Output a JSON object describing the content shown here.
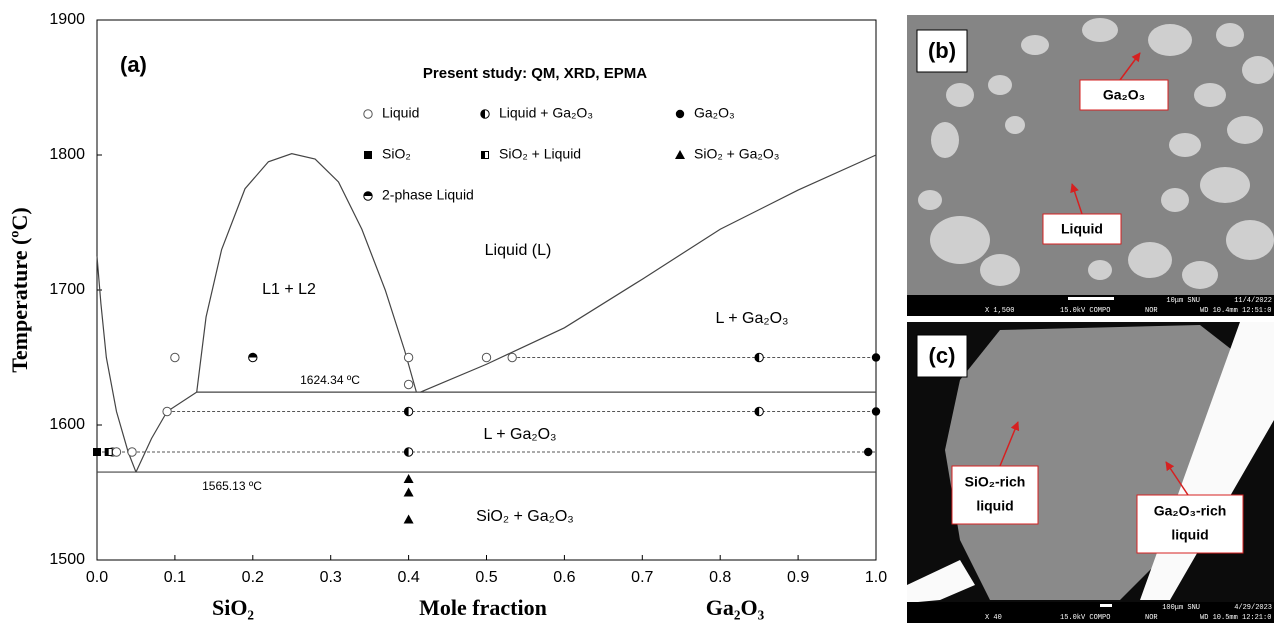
{
  "chart_data": {
    "type": "phase-diagram",
    "panel_label": "(a)",
    "legend_title": "Present study: QM, XRD, EPMA",
    "ylabel": "Temperature (ºC)",
    "xlabel": "Mole fraction",
    "x_end_labels": [
      "SiO₂",
      "Ga₂O₃"
    ],
    "xlim": [
      0,
      1
    ],
    "ylim": [
      1500,
      1900
    ],
    "xticks": [
      {
        "value": 0,
        "label": "0.0"
      },
      0.1,
      0.2,
      0.3,
      0.4,
      0.5,
      0.6,
      0.7,
      0.8,
      0.9,
      {
        "value": 1,
        "label": "1.0"
      }
    ],
    "yticks": [
      1500,
      1600,
      1700,
      1800,
      1900
    ],
    "series": [
      {
        "name": "Liquid",
        "marker": "circle-open",
        "color": "#555555",
        "x": [
          0.02,
          0.025,
          0.045,
          0.09,
          0.1,
          0.4,
          0.5,
          0.533,
          0.4
        ],
        "values": [
          1580,
          1580,
          1580,
          1610,
          1650,
          1650,
          1650,
          1650,
          1630
        ]
      },
      {
        "name": "Liquid + Ga₂O₃",
        "marker": "circle-half-left",
        "color": "#000000",
        "x": [
          0.85,
          0.4,
          0.85,
          0.4
        ],
        "values": [
          1650,
          1610,
          1610,
          1580
        ]
      },
      {
        "name": "Ga₂O₃",
        "marker": "circle-filled",
        "color": "#000000",
        "x": [
          1,
          1,
          0.99
        ],
        "values": [
          1650,
          1610,
          1580
        ]
      },
      {
        "name": "SiO₂",
        "marker": "square",
        "color": "#000000",
        "x": [
          0
        ],
        "values": [
          1580
        ]
      },
      {
        "name": "SiO₂ + Liquid",
        "marker": "square-half",
        "color": "#000000",
        "x": [
          0.015
        ],
        "values": [
          1580
        ]
      },
      {
        "name": "SiO₂ + Ga₂O₃",
        "marker": "triangle",
        "color": "#000000",
        "x": [
          0.4,
          0.4,
          0.4
        ],
        "values": [
          1560,
          1550,
          1530
        ]
      },
      {
        "name": "2-phase Liquid",
        "marker": "circle-half-top",
        "color": "#000000",
        "x": [
          0.2
        ],
        "values": [
          1650
        ]
      }
    ],
    "curves": [
      {
        "dash": false,
        "x": [
          0.128,
          0.14,
          0.16,
          0.19,
          0.22,
          0.25,
          0.28,
          0.31,
          0.34,
          0.37,
          0.395,
          0.41
        ],
        "values": [
          1624.34,
          1680,
          1730,
          1775,
          1795,
          1801,
          1797,
          1780,
          1745,
          1700,
          1655,
          1624.34
        ]
      },
      {
        "dash": false,
        "x": [
          0,
          0.005,
          0.012,
          0.025,
          0.04,
          0.05
        ],
        "values": [
          1725,
          1690,
          1650,
          1610,
          1580,
          1565.13
        ]
      },
      {
        "dash": false,
        "x": [
          0.05,
          0.07,
          0.09,
          0.128
        ],
        "values": [
          1565.13,
          1590,
          1610,
          1624.34
        ]
      },
      {
        "dash": false,
        "x": [
          0.128,
          1
        ],
        "values": [
          1624.34,
          1624.34
        ]
      },
      {
        "dash": false,
        "x": [
          0.415,
          0.5,
          0.6,
          0.7,
          0.8,
          0.9,
          1
        ],
        "values": [
          1624.34,
          1645,
          1672,
          1708,
          1745,
          1774,
          1800
        ]
      },
      {
        "dash": false,
        "x": [
          0,
          1
        ],
        "values": [
          1565.13,
          1565.13
        ]
      },
      {
        "dash": true,
        "x": [
          0.533,
          1
        ],
        "values": [
          1650,
          1650
        ]
      },
      {
        "dash": true,
        "x": [
          0.09,
          1
        ],
        "values": [
          1610,
          1610
        ]
      },
      {
        "dash": true,
        "x": [
          0,
          1
        ],
        "values": [
          1580,
          1580
        ]
      }
    ],
    "annotations": [
      "L1 + L2",
      "Liquid (L)",
      "L + Ga₂O₃",
      "L + Ga₂O₃",
      "SiO₂ + Ga₂O₃",
      "1624.34 ºC",
      "1565.13 ºC"
    ]
  },
  "panels": [
    {
      "label": "(b)",
      "callouts": [
        [
          "Ga₂O₃"
        ],
        [
          "Liquid"
        ]
      ],
      "info": [
        "10μm SNU",
        "11/4/2022",
        "X 1,500",
        "15.0kV COMPO",
        "NOR",
        "WD 10.4mm 12:51:0"
      ]
    },
    {
      "label": "(c)",
      "callouts": [
        [
          "SiO₂-rich",
          "liquid"
        ],
        [
          "Ga₂O₃-rich",
          "liquid"
        ]
      ],
      "info": [
        "100μm SNU",
        "4/29/2023",
        "X 40",
        "15.0kV COMPO",
        "NOR",
        "WD 10.5mm 12:21:0"
      ]
    }
  ]
}
